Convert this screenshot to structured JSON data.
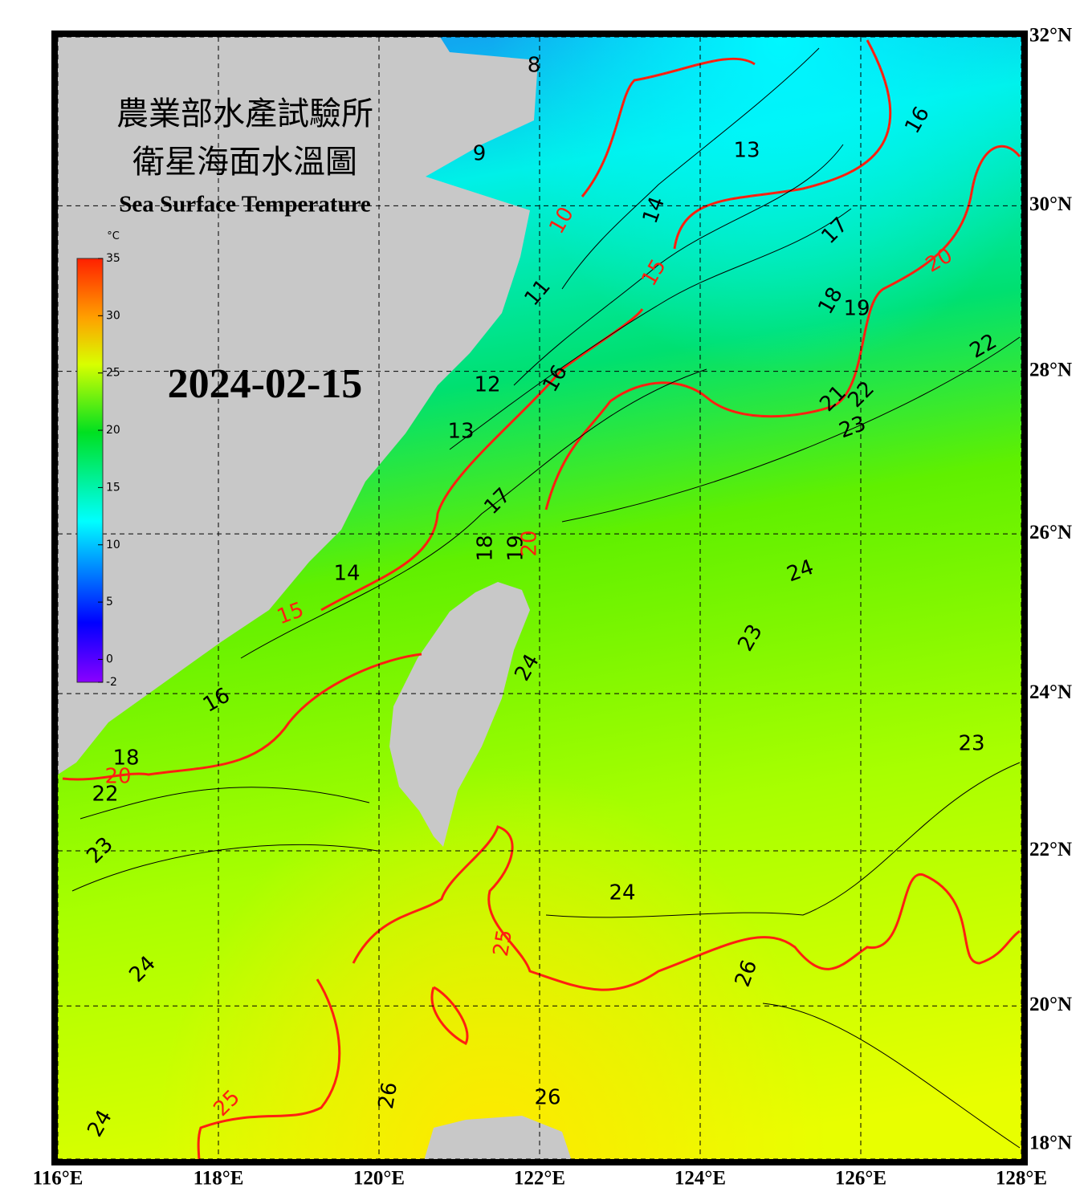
{
  "header": {
    "title_1": "農業部水產試驗所",
    "title_2": "衛星海面水溫圖",
    "subtitle": "Sea Surface Temperature",
    "date": "2024-02-15"
  },
  "colorbar": {
    "unit": "°C",
    "ticks": [
      -2,
      0,
      5,
      10,
      15,
      20,
      25,
      30,
      35
    ],
    "lim": [
      -2,
      35
    ]
  },
  "map": {
    "lon_ticks": [
      {
        "value": 116,
        "label": "116°E"
      },
      {
        "value": 118,
        "label": "118°E"
      },
      {
        "value": 120,
        "label": "120°E"
      },
      {
        "value": 122,
        "label": "122°E"
      },
      {
        "value": 124,
        "label": "124°E"
      },
      {
        "value": 126,
        "label": "126°E"
      },
      {
        "value": 128,
        "label": "128°E"
      }
    ],
    "lat_ticks": [
      {
        "value": 32,
        "label": "32°N"
      },
      {
        "value": 30,
        "label": "30°N"
      },
      {
        "value": 28,
        "label": "28°N"
      },
      {
        "value": 26,
        "label": "26°N"
      },
      {
        "value": 24,
        "label": "24°N"
      },
      {
        "value": 22,
        "label": "22°N"
      },
      {
        "value": 20,
        "label": "20°N"
      },
      {
        "value": 18,
        "label": "18°N"
      }
    ],
    "contour_labels": [
      8,
      9,
      13,
      16,
      14,
      17,
      11,
      18,
      19,
      22,
      12,
      16,
      21,
      22,
      23,
      13,
      17,
      18,
      19,
      24,
      14,
      23,
      24,
      16,
      23,
      18,
      22,
      23,
      24,
      26,
      24,
      26,
      26,
      24
    ],
    "isotherm_labels": [
      10,
      20,
      15,
      20,
      15,
      20,
      25,
      25
    ]
  }
}
